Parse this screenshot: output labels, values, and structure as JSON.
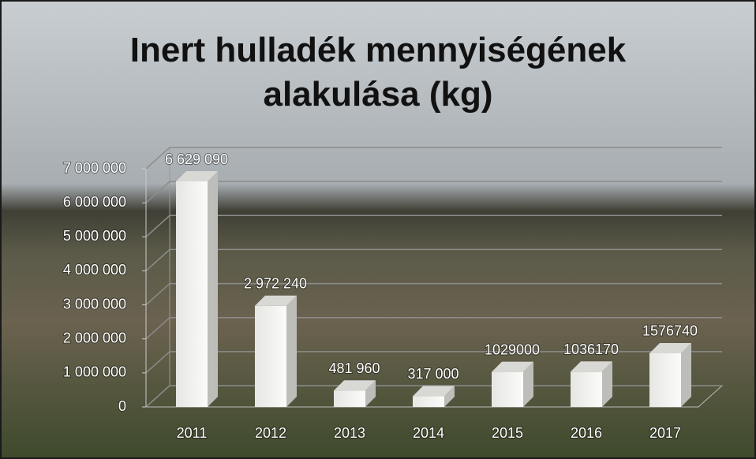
{
  "chart_data": {
    "type": "bar3d",
    "title": "Inert hulladék mennyiségének alakulása (kg)",
    "categories": [
      "2011",
      "2012",
      "2013",
      "2014",
      "2015",
      "2016",
      "2017"
    ],
    "values": [
      6629090,
      2972240,
      481960,
      317000,
      1029000,
      1036170,
      1576740
    ],
    "value_labels": [
      "6 629 090",
      "2 972 240",
      "481 960",
      "317 000",
      "1029000",
      "1036170",
      "1576740"
    ],
    "color": "#f2f2f0",
    "ylim": [
      0,
      7000000
    ],
    "yticks": [
      0,
      {
        "value": 1000000,
        "label": "1 000 000"
      },
      {
        "value": 2000000,
        "label": "2 000 000"
      },
      {
        "value": 3000000,
        "label": "3 000 000"
      },
      {
        "value": 4000000,
        "label": "4 000 000"
      },
      {
        "value": 5000000,
        "label": "5 000 000"
      },
      {
        "value": 6000000,
        "label": "6 000 000"
      },
      {
        "value": 7000000,
        "label": "7 000 000"
      }
    ],
    "grid": true
  }
}
